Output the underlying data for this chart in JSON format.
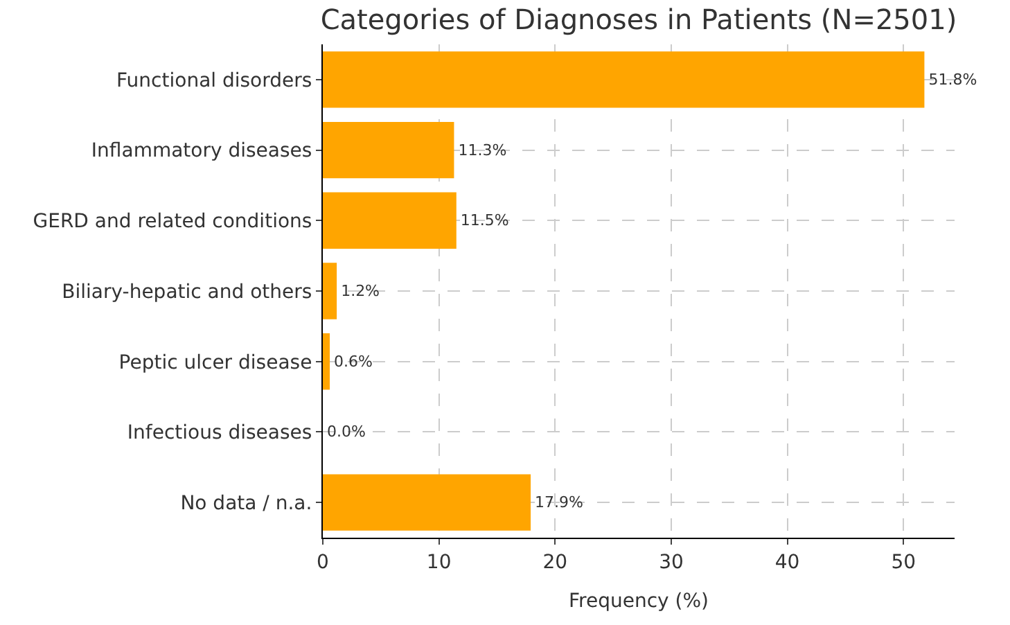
{
  "chart_data": {
    "type": "bar",
    "orientation": "horizontal",
    "title": "Categories of Diagnoses in Patients (N=2501)",
    "xlabel": "Frequency (%)",
    "categories": [
      "Functional disorders",
      "Inflammatory diseases",
      "GERD and related conditions",
      "Biliary-hepatic and others",
      "Peptic ulcer disease",
      "Infectious diseases",
      "No data / n.a."
    ],
    "values": [
      51.8,
      11.3,
      11.5,
      1.2,
      0.6,
      0.0,
      17.9
    ],
    "value_labels": [
      "51.8%",
      "11.3%",
      "11.5%",
      "1.2%",
      "0.6%",
      "0.0%",
      "17.9%"
    ],
    "color": "#ffa500",
    "xlim": [
      0,
      54.4
    ],
    "xticks": [
      0,
      10,
      20,
      30,
      40,
      50
    ],
    "grid": true
  }
}
